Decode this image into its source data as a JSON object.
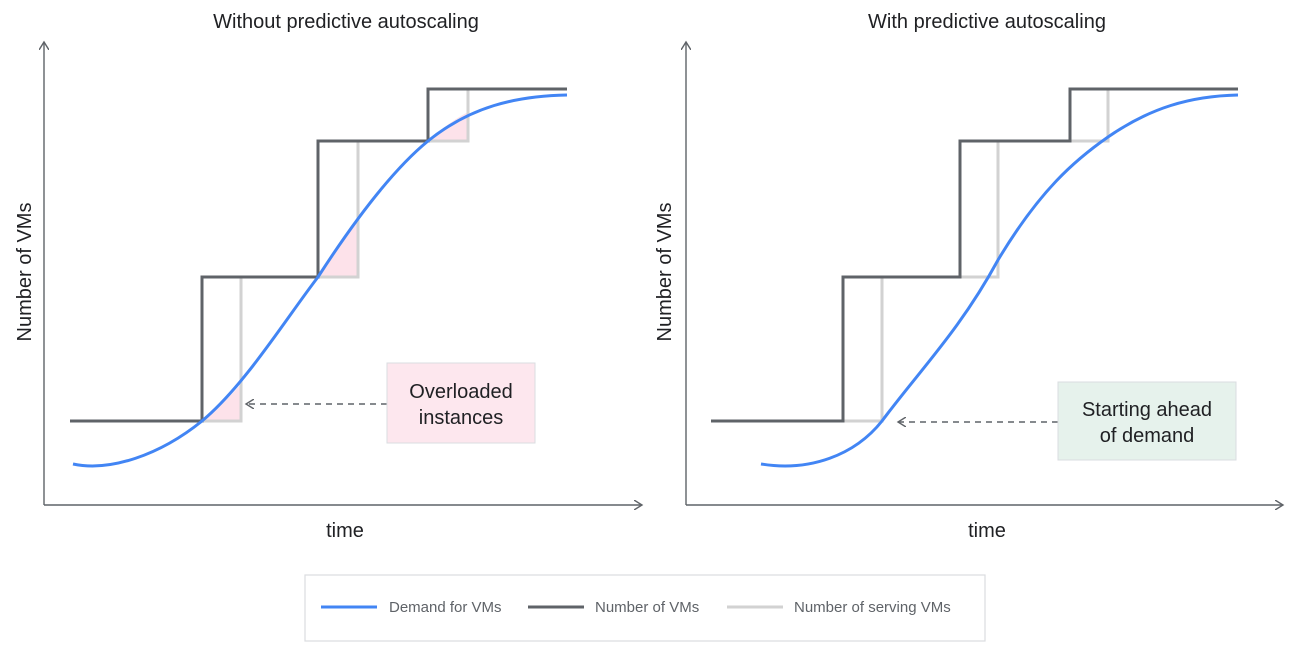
{
  "colors": {
    "demand": "#4285f4",
    "vms": "#5f6368",
    "serving": "#d2d2d2",
    "overload_fill": "#fde2ea",
    "overloaded_box": "#fde7ee",
    "ahead_box": "#e6f2ec",
    "box_border": "#dadce0",
    "axis": "#5f6368",
    "dashed": "#5f6368"
  },
  "panels": {
    "left": {
      "title": "Without predictive autoscaling",
      "xlabel": "time",
      "ylabel": "Number of VMs",
      "callout": [
        "Overloaded",
        "instances"
      ]
    },
    "right": {
      "title": "With predictive autoscaling",
      "xlabel": "time",
      "ylabel": "Number of VMs",
      "callout": [
        "Starting ahead",
        "of demand"
      ]
    }
  },
  "legend": {
    "demand": "Demand for VMs",
    "vms": "Number of VMs",
    "serving": "Number of serving VMs"
  }
}
